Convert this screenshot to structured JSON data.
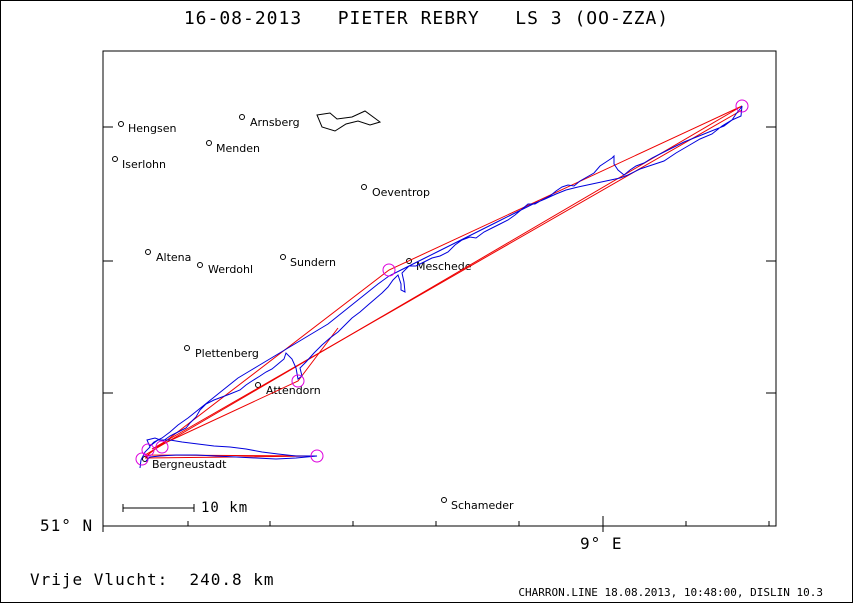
{
  "title": "16-08-2013   PIETER REBRY   LS 3 (OO-ZZA)",
  "axes": {
    "lat_label": "51° N",
    "lon_label": "9° E"
  },
  "scale_bar": {
    "label": "10 km"
  },
  "footer": {
    "distance_text": "Vrije Vlucht:  240.8 km",
    "software_text": "CHARRON.LINE 18.08.2013, 10:48:00, DISLIN 10.3"
  },
  "towns": [
    {
      "name": "Hengsen"
    },
    {
      "name": "Arnsberg"
    },
    {
      "name": "Menden"
    },
    {
      "name": "Iserlohn"
    },
    {
      "name": "Oeventrop"
    },
    {
      "name": "Altena"
    },
    {
      "name": "Werdohl"
    },
    {
      "name": "Sundern"
    },
    {
      "name": "Meschede"
    },
    {
      "name": "Plettenberg"
    },
    {
      "name": "Attendorn"
    },
    {
      "name": "Bergneustadt"
    },
    {
      "name": "Schameder"
    }
  ],
  "colors": {
    "track": "#0000dd",
    "task_line": "#ee0000",
    "turnpoint": "#dd00dd",
    "frame": "#000000"
  }
}
